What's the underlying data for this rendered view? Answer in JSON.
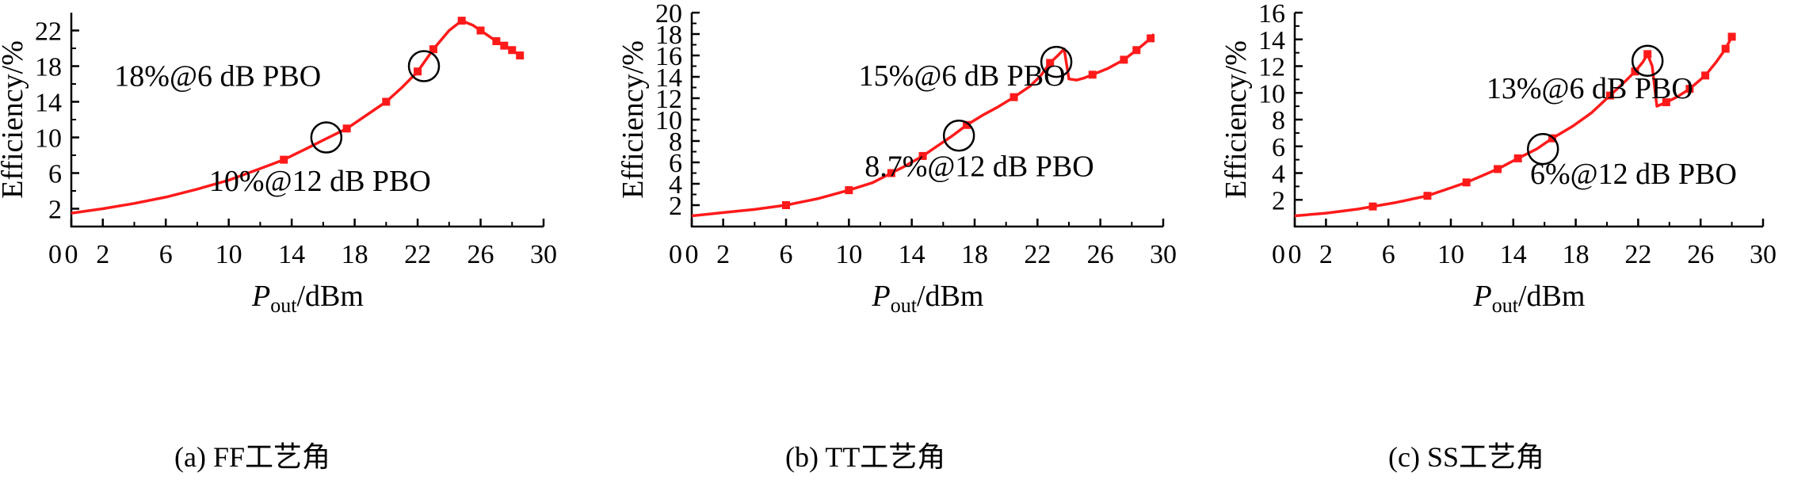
{
  "colors": {
    "series": "#ff1a1a",
    "axis": "#000000"
  },
  "chart_data": [
    {
      "type": "line",
      "caption": "(a) FF工艺角",
      "xlabel_main": "P",
      "xlabel_sub": "out",
      "xlabel_unit": "/dBm",
      "ylabel": "Efficiency/%",
      "xlim": [
        0,
        30
      ],
      "ylim": [
        0,
        24
      ],
      "xticks": [
        0,
        2,
        6,
        10,
        14,
        18,
        22,
        26,
        30
      ],
      "yticks": [
        2,
        6,
        10,
        14,
        18,
        22
      ],
      "series": [
        {
          "x": [
            0,
            2,
            4,
            6,
            8,
            10,
            12,
            13.5,
            15,
            16,
            17.5,
            19,
            20,
            21,
            22,
            23,
            24,
            24.8,
            25.5,
            26,
            26.5,
            27,
            27.5,
            28,
            28.5,
            28.7
          ],
          "y": [
            1.5,
            2.0,
            2.6,
            3.3,
            4.2,
            5.2,
            6.5,
            7.5,
            8.8,
            9.7,
            11.0,
            12.8,
            14.0,
            15.6,
            17.4,
            19.9,
            22.0,
            23.1,
            22.6,
            22.0,
            21.4,
            20.8,
            20.3,
            19.8,
            19.2,
            18.8
          ]
        }
      ],
      "markers_x": [
        13.5,
        17.5,
        20,
        22,
        23,
        24.8,
        26,
        27,
        27.5,
        28,
        28.5
      ],
      "annotations": [
        {
          "text": "18%@6 dB PBO",
          "circle_x": 22.4,
          "circle_y": 18.0,
          "label_x": 9.3,
          "label_y": 15.8
        },
        {
          "text": "10%@12 dB PBO",
          "circle_x": 16.2,
          "circle_y": 10.0,
          "label_x": 15.8,
          "label_y": 4.0
        }
      ]
    },
    {
      "type": "line",
      "caption": "(b) TT工艺角",
      "xlabel_main": "P",
      "xlabel_sub": "out",
      "xlabel_unit": "/dBm",
      "ylabel": "Efficiency/%",
      "xlim": [
        0,
        30
      ],
      "ylim": [
        0,
        20
      ],
      "xticks": [
        0,
        2,
        6,
        10,
        14,
        18,
        22,
        26,
        30
      ],
      "yticks": [
        2,
        4,
        6,
        8,
        10,
        12,
        14,
        16,
        18,
        20
      ],
      "series": [
        {
          "x": [
            0,
            2,
            4,
            6,
            8,
            10,
            11.5,
            12.7,
            13.5,
            14.7,
            15.5,
            16.5,
            17.5,
            18.5,
            19.5,
            20.5,
            21.5,
            22.2,
            22.8,
            23.3,
            23.7,
            24.0,
            24.5,
            25.0,
            25.5,
            26.5,
            27.5,
            28.3,
            28.8,
            29.2,
            29.4
          ],
          "y": [
            1.0,
            1.3,
            1.6,
            2.0,
            2.6,
            3.4,
            4.1,
            5.0,
            5.6,
            6.6,
            7.4,
            8.4,
            9.5,
            10.4,
            11.2,
            12.1,
            13.1,
            14.1,
            15.3,
            16.0,
            16.6,
            13.8,
            13.7,
            13.9,
            14.2,
            14.8,
            15.6,
            16.5,
            17.1,
            17.6,
            18.0
          ]
        }
      ],
      "markers_x": [
        6,
        10,
        12.7,
        14.7,
        17.5,
        20.5,
        22.8,
        25.5,
        27.5,
        28.3,
        29.2
      ],
      "annotations": [
        {
          "text": "15%@6 dB PBO",
          "circle_x": 23.2,
          "circle_y": 15.4,
          "label_x": 17.2,
          "label_y": 13.2
        },
        {
          "text": "8.7%@12 dB PBO",
          "circle_x": 17.0,
          "circle_y": 8.5,
          "label_x": 18.3,
          "label_y": 4.7
        }
      ]
    },
    {
      "type": "line",
      "caption": "(c) SS工艺角",
      "xlabel_main": "P",
      "xlabel_sub": "out",
      "xlabel_unit": "/dBm",
      "ylabel": "Efficiency/%",
      "xlim": [
        0,
        30
      ],
      "ylim": [
        0,
        16
      ],
      "xticks": [
        0,
        2,
        6,
        10,
        14,
        18,
        22,
        26,
        30
      ],
      "yticks": [
        2,
        4,
        6,
        8,
        10,
        12,
        14,
        16
      ],
      "series": [
        {
          "x": [
            0,
            2,
            4,
            5,
            6.5,
            8.5,
            10,
            11,
            12,
            13,
            14.3,
            15.5,
            16.5,
            17.8,
            19,
            20.2,
            21.2,
            21.8,
            22.3,
            22.6,
            22.9,
            23.2,
            23.8,
            24.5,
            25.3,
            26.3,
            27,
            27.6,
            28.0
          ],
          "y": [
            0.8,
            1.0,
            1.3,
            1.5,
            1.8,
            2.3,
            2.9,
            3.3,
            3.8,
            4.3,
            5.1,
            5.8,
            6.6,
            7.5,
            8.5,
            9.8,
            10.9,
            11.6,
            12.3,
            12.9,
            12.0,
            9.0,
            9.3,
            9.7,
            10.3,
            11.3,
            12.3,
            13.3,
            14.2
          ]
        }
      ],
      "markers_x": [
        5,
        8.5,
        11,
        13,
        14.3,
        16.5,
        20.2,
        21.8,
        22.6,
        23.8,
        25.3,
        26.3,
        27.6,
        28.0
      ],
      "annotations": [
        {
          "text": "13%@6 dB PBO",
          "circle_x": 22.6,
          "circle_y": 12.4,
          "label_x": 18.9,
          "label_y": 9.6
        },
        {
          "text": "6%@12 dB PBO",
          "circle_x": 15.9,
          "circle_y": 5.8,
          "label_x": 21.7,
          "label_y": 3.2
        }
      ]
    }
  ]
}
